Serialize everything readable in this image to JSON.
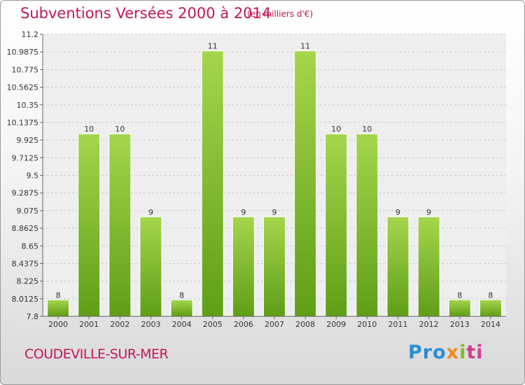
{
  "chart_data": {
    "type": "bar",
    "title": "Subventions Versées 2000 à 2014",
    "subtitle": "(en milliers d'€)",
    "xlabel": "",
    "ylabel": "",
    "categories": [
      "2000",
      "2001",
      "2002",
      "2003",
      "2004",
      "2005",
      "2006",
      "2007",
      "2008",
      "2009",
      "2010",
      "2011",
      "2012",
      "2013",
      "2014"
    ],
    "values": [
      8,
      10,
      10,
      9,
      8,
      11,
      9,
      9,
      11,
      10,
      10,
      9,
      9,
      8,
      8
    ],
    "ylim": [
      7.8,
      11.2
    ],
    "yticks": [
      "11.2",
      "10.9875",
      "10.775",
      "10.5625",
      "10.35",
      "10.1375",
      "9.925",
      "9.7125",
      "9.5",
      "9.2875",
      "9.075",
      "8.8625",
      "8.65",
      "8.4375",
      "8.225",
      "8.0125",
      "7.8"
    ],
    "grid": true,
    "bar_color": "#7cbf2a"
  },
  "footer": {
    "commune": "COUDEVILLE-SUR-MER",
    "logo": {
      "p1": "Pro",
      "p2": "x",
      "p3": "i",
      "p4": "ti"
    }
  }
}
